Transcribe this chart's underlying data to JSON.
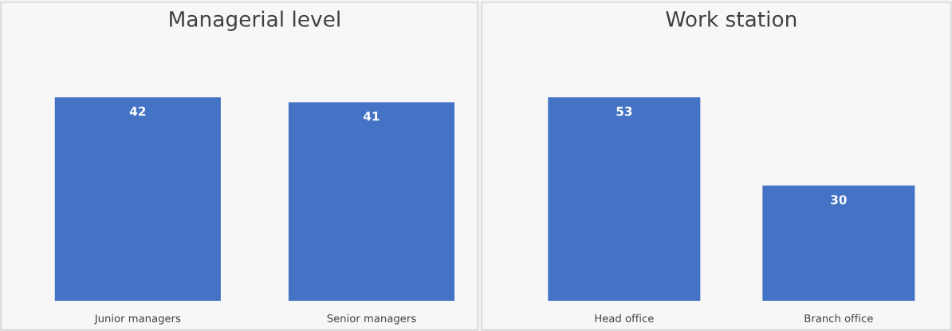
{
  "chart_data": [
    {
      "type": "bar",
      "title": "Managerial level",
      "categories": [
        "Junior managers",
        "Senior managers"
      ],
      "values": [
        42,
        41
      ],
      "color": "#4472c4",
      "data_labels": true,
      "tick_labels": "x"
    },
    {
      "type": "bar",
      "title": "Work station",
      "categories": [
        "Head office",
        "Branch office"
      ],
      "values": [
        53,
        30
      ],
      "color": "#4472c4",
      "data_labels": true,
      "tick_labels": "x"
    }
  ]
}
